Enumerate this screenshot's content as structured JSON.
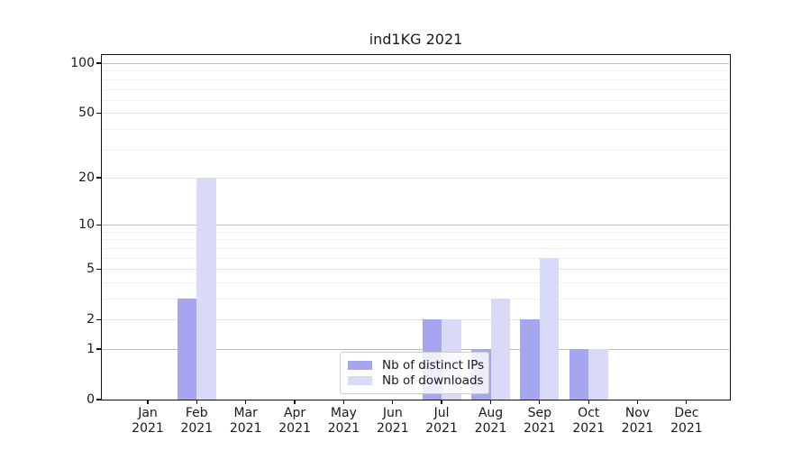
{
  "chart_data": {
    "type": "bar",
    "title": "ind1KG 2021",
    "year": "2021",
    "categories": [
      "Jan",
      "Feb",
      "Mar",
      "Apr",
      "May",
      "Jun",
      "Jul",
      "Aug",
      "Sep",
      "Oct",
      "Nov",
      "Dec"
    ],
    "series": [
      {
        "name": "Nb of distinct IPs",
        "color": "#a6a6f0",
        "values": [
          0,
          3,
          0,
          0,
          0,
          0,
          2,
          1,
          2,
          1,
          0,
          0
        ]
      },
      {
        "name": "Nb of downloads",
        "color": "#d9d9f8",
        "values": [
          0,
          20,
          0,
          0,
          0,
          0,
          2,
          3,
          6,
          1,
          0,
          0
        ]
      }
    ],
    "xlabel": "",
    "ylabel": "",
    "yscale": "log1p",
    "ylim": [
      0,
      112
    ],
    "yticks": [
      0,
      1,
      2,
      5,
      10,
      20,
      50,
      100
    ],
    "minor_yticks": [
      3,
      4,
      6,
      7,
      8,
      9,
      30,
      40,
      60,
      70,
      80,
      90
    ],
    "grid": "on",
    "legend_position": "lower-center"
  },
  "colors": {
    "strong_grid": "#bcbcbc",
    "major_grid": "#e2e2e2",
    "minor_grid": "#f2f2f2",
    "spine": "#111111",
    "text": "#1a1a1a",
    "legend_border": "#cccccc",
    "background": "#ffffff"
  }
}
